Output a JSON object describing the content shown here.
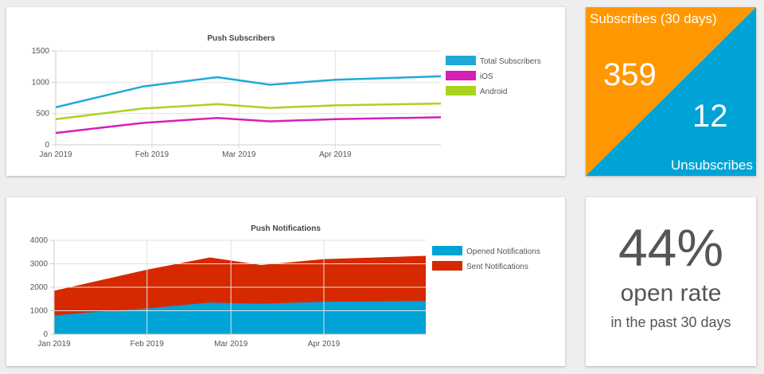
{
  "subscribers_chart": {
    "chart_data": {
      "type": "line",
      "title": "Push Subscribers",
      "x_tick_labels": [
        "Jan 2019",
        "Feb 2019",
        "Mar 2019",
        "Apr 2019"
      ],
      "x_ticks": [
        "2019-01-01",
        "2019-02-01",
        "2019-03-01",
        "2019-04-01"
      ],
      "x_range": [
        "2019-01-01",
        "2019-05-05"
      ],
      "ylim": [
        0,
        1500
      ],
      "y_ticks": [
        0,
        500,
        1000,
        1500
      ],
      "grid": true,
      "legend_position": "right",
      "series": [
        {
          "name": "Total Subscribers",
          "color": "#1fa9d8",
          "points": [
            [
              "2019-01-01",
              600
            ],
            [
              "2019-01-29",
              930
            ],
            [
              "2019-02-22",
              1080
            ],
            [
              "2019-03-11",
              960
            ],
            [
              "2019-04-01",
              1040
            ],
            [
              "2019-05-05",
              1095
            ]
          ]
        },
        {
          "name": "iOS",
          "color": "#d61fb7",
          "points": [
            [
              "2019-01-01",
              190
            ],
            [
              "2019-01-29",
              350
            ],
            [
              "2019-02-22",
              430
            ],
            [
              "2019-03-11",
              375
            ],
            [
              "2019-04-01",
              410
            ],
            [
              "2019-05-05",
              440
            ]
          ]
        },
        {
          "name": "Android",
          "color": "#a8d41f",
          "points": [
            [
              "2019-01-01",
              410
            ],
            [
              "2019-01-29",
              580
            ],
            [
              "2019-02-22",
              650
            ],
            [
              "2019-03-11",
              590
            ],
            [
              "2019-04-01",
              630
            ],
            [
              "2019-05-05",
              660
            ]
          ]
        }
      ]
    }
  },
  "notifications_chart": {
    "chart_data": {
      "type": "area",
      "title": "Push Notifications",
      "x_tick_labels": [
        "Jan 2019",
        "Feb 2019",
        "Mar 2019",
        "Apr 2019"
      ],
      "x_ticks": [
        "2019-01-01",
        "2019-02-01",
        "2019-03-01",
        "2019-04-01"
      ],
      "x_range": [
        "2019-01-01",
        "2019-05-05"
      ],
      "ylim": [
        0,
        4000
      ],
      "y_ticks": [
        0,
        1000,
        2000,
        3000,
        4000
      ],
      "grid": true,
      "legend_position": "right",
      "series": [
        {
          "name": "Opened Notifications",
          "color": "#00a3d6",
          "points": [
            [
              "2019-01-01",
              800
            ],
            [
              "2019-01-15",
              950
            ],
            [
              "2019-02-01",
              1100
            ],
            [
              "2019-02-22",
              1350
            ],
            [
              "2019-03-11",
              1300
            ],
            [
              "2019-04-01",
              1380
            ],
            [
              "2019-04-20",
              1400
            ],
            [
              "2019-05-05",
              1420
            ]
          ]
        },
        {
          "name": "Sent Notifications",
          "color": "#d62900",
          "points": [
            [
              "2019-01-01",
              1850
            ],
            [
              "2019-02-01",
              2750
            ],
            [
              "2019-02-22",
              3270
            ],
            [
              "2019-03-11",
              2950
            ],
            [
              "2019-04-01",
              3200
            ],
            [
              "2019-05-05",
              3340
            ]
          ]
        }
      ]
    }
  },
  "subscribe_stats": {
    "title": "Subscribes (30 days)",
    "subscribes": "359",
    "unsubscribes": "12",
    "unsub_label": "Unsubscribes",
    "color_subscribes": "#ff9800",
    "color_unsubscribes": "#00a3d6"
  },
  "open_rate": {
    "percent": "44%",
    "label": "open rate",
    "sub": "in the past 30 days"
  }
}
